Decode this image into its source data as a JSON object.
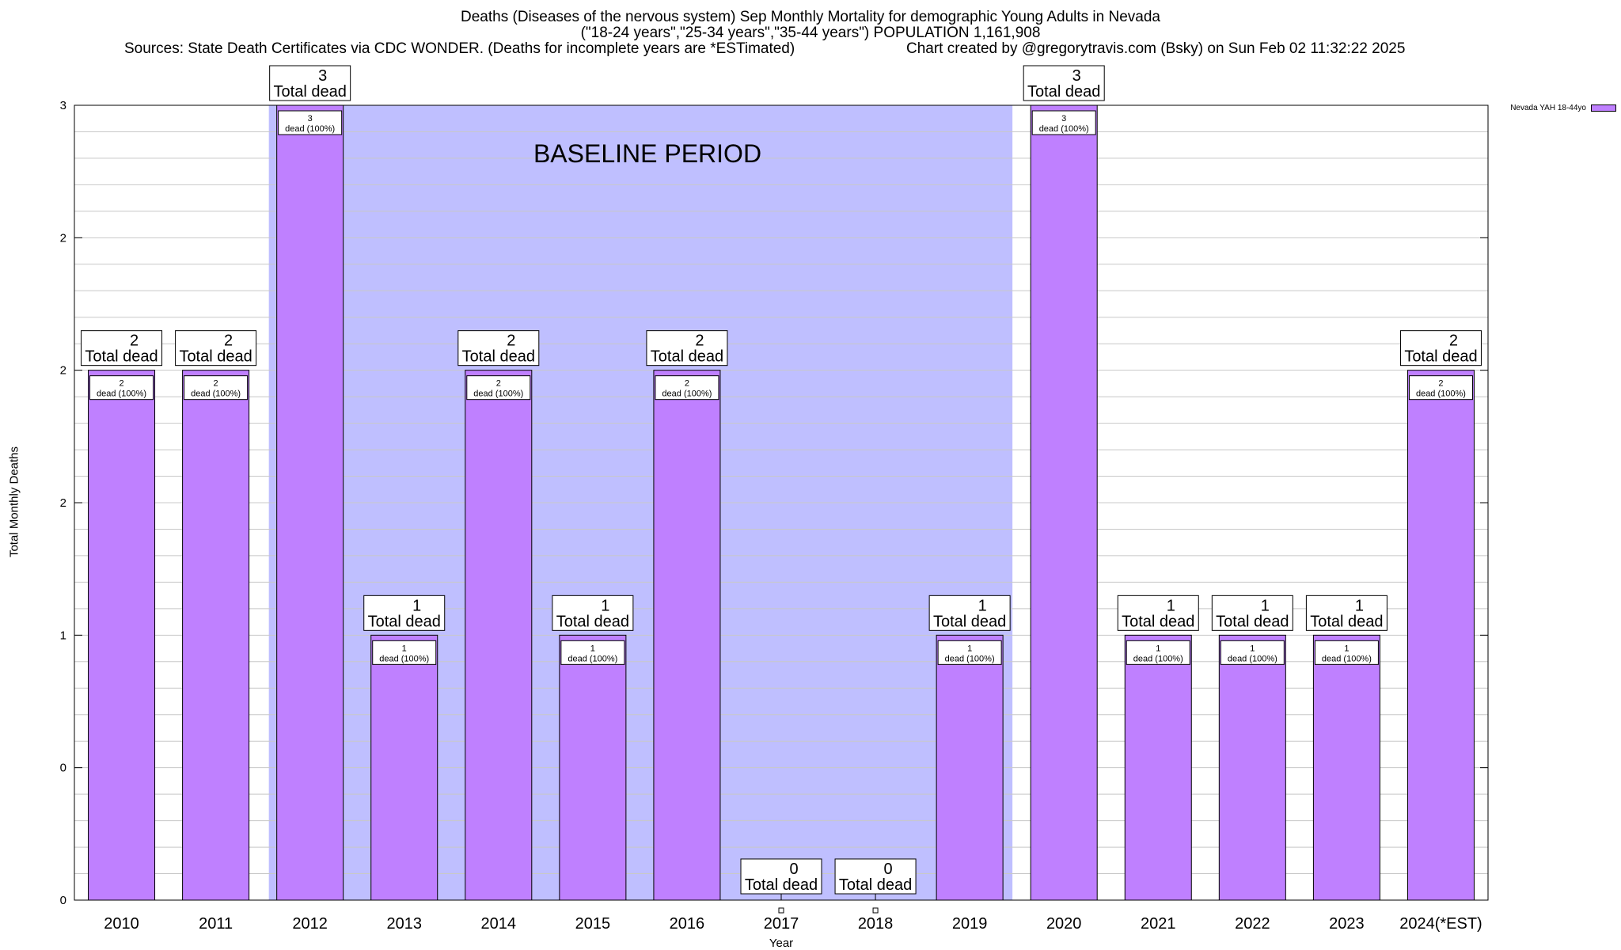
{
  "title": {
    "line1": "Deaths (Diseases of the nervous system) Sep Monthly Mortality for demographic Young Adults in Nevada",
    "line2": "(\"18-24 years\",\"25-34 years\",\"35-44 years\") POPULATION 1,161,908",
    "line3_left": "Sources: State Death Certificates via CDC WONDER. (Deaths for incomplete years are *ESTimated)",
    "line3_right": "Chart created by @gregorytravis.com (Bsky) on Sun Feb 02 11:32:22 2025"
  },
  "legend": {
    "label": "Nevada YAH 18-44yo"
  },
  "baseline_label": "BASELINE PERIOD",
  "colors": {
    "bar": "#bf80ff",
    "baseline": "#bfbfff",
    "grid": "#c8c8c8"
  },
  "chart_data": {
    "type": "bar",
    "xlabel": "Year",
    "ylabel": "Total Monthly Deaths",
    "ylim": [
      0,
      3
    ],
    "yticks": [
      {
        "value": 0,
        "label": "0"
      },
      {
        "value": 0.5,
        "label": "0"
      },
      {
        "value": 1,
        "label": "1"
      },
      {
        "value": 1.5,
        "label": "2"
      },
      {
        "value": 2,
        "label": "2"
      },
      {
        "value": 2.5,
        "label": "2"
      },
      {
        "value": 3,
        "label": "3"
      }
    ],
    "baseline_period": [
      "2012",
      "2019"
    ],
    "categories": [
      "2010",
      "2011",
      "2012",
      "2013",
      "2014",
      "2015",
      "2016",
      "2017",
      "2018",
      "2019",
      "2020",
      "2021",
      "2022",
      "2023",
      "2024(*EST)"
    ],
    "values": [
      2,
      2,
      3,
      1,
      2,
      1,
      2,
      0,
      0,
      1,
      3,
      1,
      1,
      1,
      2
    ],
    "total_label_suffix": "Total dead",
    "inner_label_suffix": "dead (100%)"
  }
}
